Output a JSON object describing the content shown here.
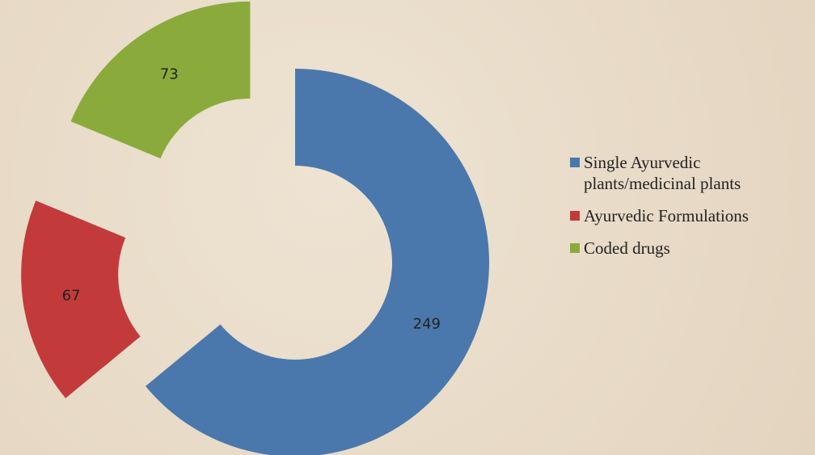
{
  "chart_data": {
    "type": "donut",
    "categories": [
      "Single Ayurvedic plants/medicinal plants",
      "Ayurvedic Formulations",
      "Coded drugs"
    ],
    "values": [
      249,
      67,
      73
    ],
    "colors": [
      "#4a78ac",
      "#c23b3a",
      "#8aab3c"
    ],
    "exploded": [
      false,
      true,
      true
    ],
    "legend": "right"
  }
}
